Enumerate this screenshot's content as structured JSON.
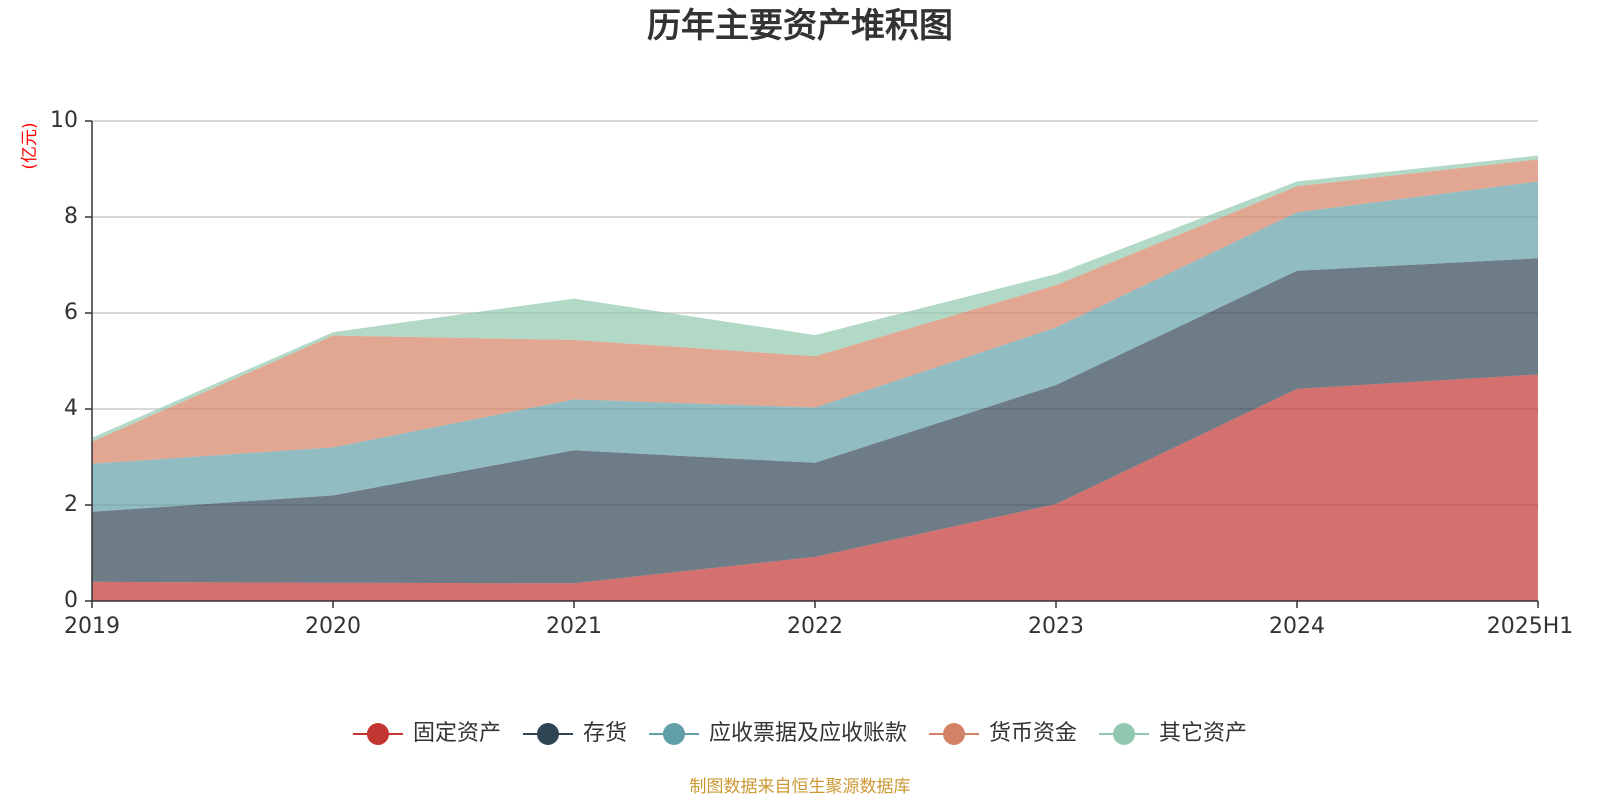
{
  "chart_data": {
    "type": "area",
    "stacked": true,
    "title": "历年主要资产堆积图",
    "y_unit": "(亿元)",
    "categories": [
      "2019",
      "2020",
      "2021",
      "2022",
      "2023",
      "2024",
      "2025H1"
    ],
    "ylim": [
      0,
      10
    ],
    "yticks": [
      "0",
      "2",
      "4",
      "6",
      "8",
      "10"
    ],
    "grid": true,
    "legend_position": "bottom",
    "series": [
      {
        "name": "固定资产",
        "color": "#c23531",
        "values": [
          0.4,
          0.38,
          0.37,
          0.92,
          2.02,
          4.42,
          4.72
        ]
      },
      {
        "name": "存货",
        "color": "#2f4554",
        "values": [
          1.46,
          1.82,
          2.77,
          1.96,
          2.48,
          2.46,
          2.42
        ]
      },
      {
        "name": "应收票据及应收账款",
        "color": "#61a0a8",
        "values": [
          1.0,
          1.0,
          1.06,
          1.15,
          1.2,
          1.22,
          1.6
        ]
      },
      {
        "name": "货币资金",
        "color": "#d48265",
        "values": [
          0.46,
          2.33,
          1.24,
          1.07,
          0.88,
          0.54,
          0.46
        ]
      },
      {
        "name": "其它资产",
        "color": "#91c7ae",
        "values": [
          0.08,
          0.07,
          0.86,
          0.44,
          0.23,
          0.1,
          0.08
        ]
      }
    ]
  },
  "unit_color": "#ff0000",
  "source_text": "制图数据来自恒生聚源数据库",
  "source_color": "#cc9933"
}
